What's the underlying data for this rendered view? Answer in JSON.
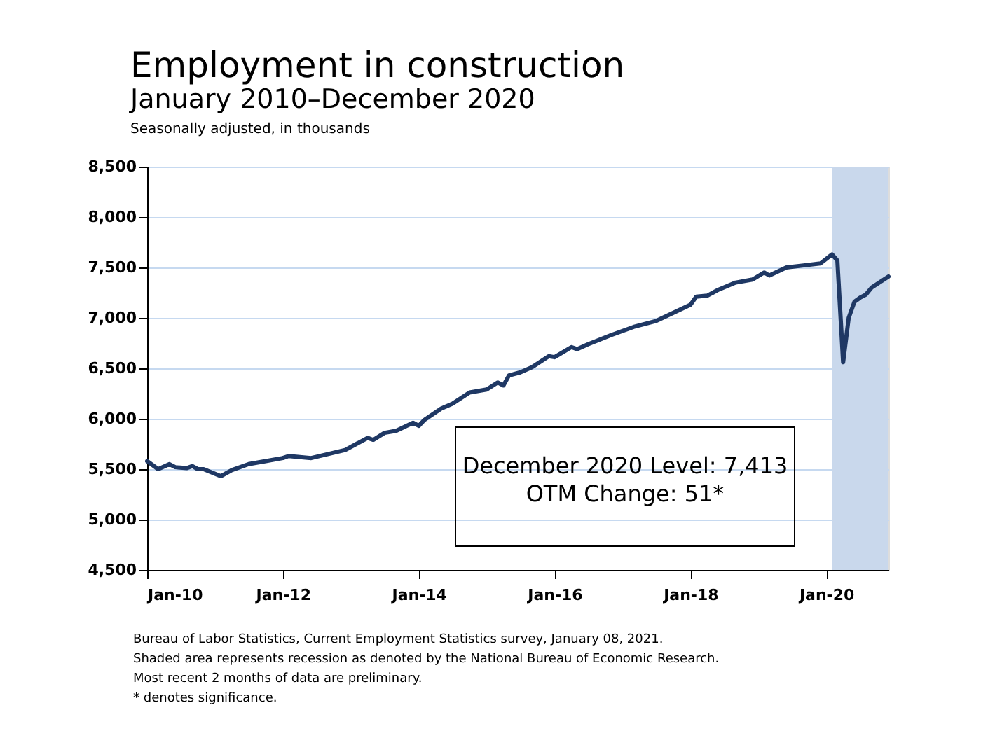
{
  "chart_data": {
    "type": "line",
    "title": "Employment in construction",
    "subtitle": "January 2010–December 2020",
    "ylabel": "Seasonally adjusted, in thousands",
    "x": [
      "2010-01",
      "2010-03",
      "2010-05",
      "2010-06",
      "2010-08",
      "2010-09",
      "2010-10",
      "2010-11",
      "2011-02",
      "2011-04",
      "2011-07",
      "2011-10",
      "2012-01",
      "2012-02",
      "2012-06",
      "2012-09",
      "2012-12",
      "2013-04",
      "2013-05",
      "2013-07",
      "2013-09",
      "2013-12",
      "2014-01",
      "2014-02",
      "2014-05",
      "2014-07",
      "2014-10",
      "2015-01",
      "2015-03",
      "2015-04",
      "2015-05",
      "2015-07",
      "2015-09",
      "2015-12",
      "2016-01",
      "2016-04",
      "2016-05",
      "2016-07",
      "2016-11",
      "2017-03",
      "2017-07",
      "2017-10",
      "2018-01",
      "2018-02",
      "2018-04",
      "2018-06",
      "2018-09",
      "2018-12",
      "2019-02",
      "2019-03",
      "2019-06",
      "2019-09",
      "2019-12",
      "2020-02",
      "2020-03",
      "2020-04",
      "2020-05",
      "2020-06",
      "2020-07",
      "2020-08",
      "2020-09",
      "2020-12"
    ],
    "series": [
      {
        "color": "#1f3864",
        "values": [
          5580,
          5500,
          5550,
          5520,
          5510,
          5530,
          5500,
          5500,
          5430,
          5490,
          5550,
          5580,
          5610,
          5630,
          5610,
          5650,
          5690,
          5810,
          5790,
          5860,
          5880,
          5960,
          5930,
          5990,
          6100,
          6150,
          6260,
          6290,
          6360,
          6330,
          6430,
          6460,
          6510,
          6620,
          6610,
          6710,
          6690,
          6740,
          6830,
          6910,
          6970,
          7050,
          7130,
          7210,
          7220,
          7280,
          7350,
          7380,
          7450,
          7420,
          7500,
          7520,
          7540,
          7630,
          7570,
          6560,
          7000,
          7160,
          7200,
          7230,
          7300,
          7410
        ]
      }
    ],
    "xlim": [
      "2010-01",
      "2020-12"
    ],
    "xticks": [
      {
        "value": "2010-01",
        "label": "Jan-10"
      },
      {
        "value": "2012-01",
        "label": "Jan-12"
      },
      {
        "value": "2014-01",
        "label": "Jan-14"
      },
      {
        "value": "2016-01",
        "label": "Jan-16"
      },
      {
        "value": "2018-01",
        "label": "Jan-18"
      },
      {
        "value": "2020-01",
        "label": "Jan-20"
      }
    ],
    "ylim": [
      4500,
      8500
    ],
    "yticks": [
      {
        "value": 4500,
        "label": "4,500"
      },
      {
        "value": 5000,
        "label": "5,000"
      },
      {
        "value": 5500,
        "label": "5,500"
      },
      {
        "value": 6000,
        "label": "6,000"
      },
      {
        "value": 6500,
        "label": "6,500"
      },
      {
        "value": 7000,
        "label": "7,000"
      },
      {
        "value": 7500,
        "label": "7,500"
      },
      {
        "value": 8000,
        "label": "8,000"
      },
      {
        "value": 8500,
        "label": "8,500"
      }
    ],
    "bands": [
      {
        "axis": "x",
        "from": "2020-02",
        "to": "2020-12",
        "color": "#c9d8ec"
      }
    ],
    "grid": "y",
    "marker": "none",
    "line_style": "solid",
    "annotations": [
      "December 2020 Level: 7,413",
      "OTM Change: 51*",
      "Bureau of Labor Statistics, Current Employment Statistics survey, January 08, 2021.",
      "Shaded area represents recession as denoted by the National Bureau of Economic Research.",
      "Most recent 2 months of data are preliminary.",
      "* denotes significance."
    ]
  }
}
